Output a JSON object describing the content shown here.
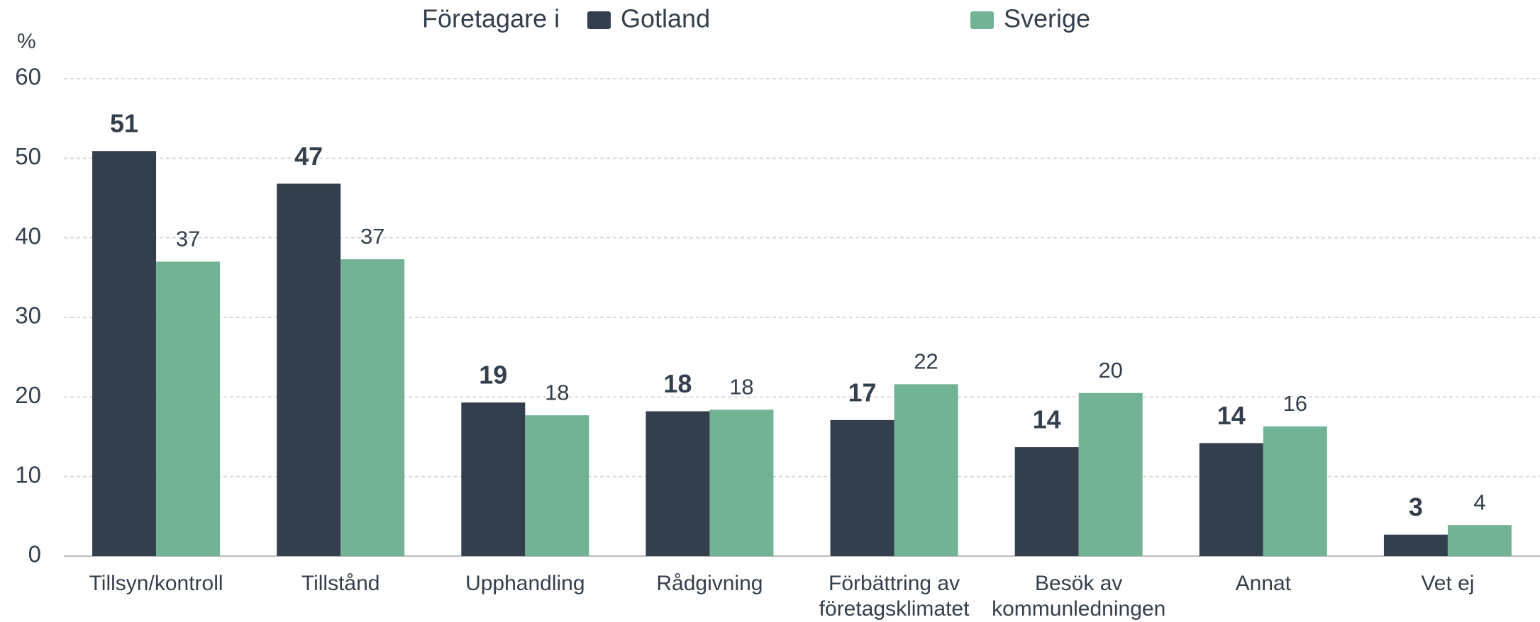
{
  "chart_data": {
    "type": "bar",
    "legend_title": "Företagare i",
    "unit_label": "%",
    "categories": [
      [
        "Tillsyn/kontroll"
      ],
      [
        "Tillstånd"
      ],
      [
        "Upphandling"
      ],
      [
        "Rådgivning"
      ],
      [
        "Förbättring av",
        "företagsklimatet"
      ],
      [
        "Besök av",
        "kommunledningen"
      ],
      [
        "Annat"
      ],
      [
        "Vet ej"
      ]
    ],
    "series": [
      {
        "name": "Gotland",
        "color": "#333f4c",
        "values": [
          50.9,
          46.8,
          19.3,
          18.2,
          17.1,
          13.7,
          14.2,
          2.7
        ],
        "value_labels": [
          "51",
          "47",
          "19",
          "18",
          "17",
          "14",
          "14",
          "3"
        ]
      },
      {
        "name": "Sverige",
        "color": "#72b396",
        "values": [
          37.0,
          37.3,
          17.7,
          18.4,
          21.6,
          20.5,
          16.3,
          3.9
        ],
        "value_labels": [
          "37",
          "37",
          "18",
          "18",
          "22",
          "20",
          "16",
          "4"
        ]
      }
    ],
    "ylim": [
      0,
      60
    ],
    "yticks": [
      0,
      10,
      20,
      30,
      40,
      50,
      60
    ],
    "grid": true
  }
}
